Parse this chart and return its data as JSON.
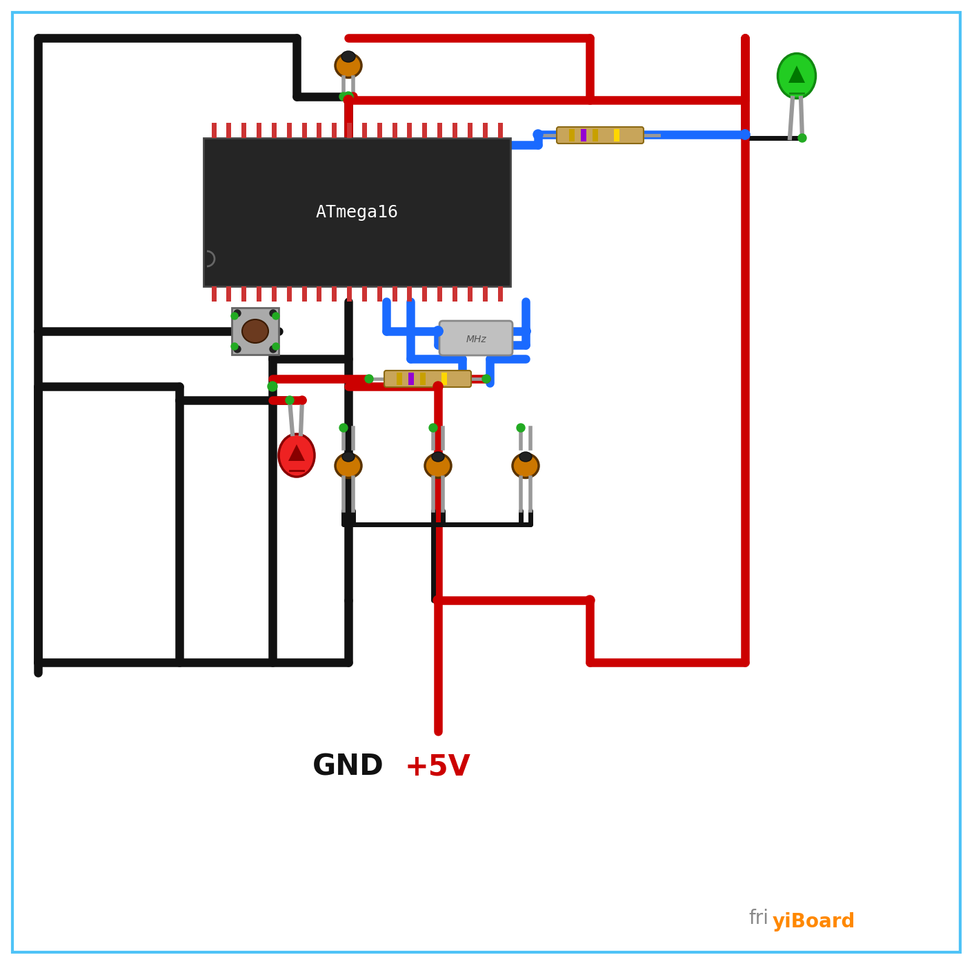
{
  "bg": "#ffffff",
  "border_color": "#4FC3F7",
  "blk": "#111111",
  "red": "#cc0000",
  "blu": "#1a6aff",
  "grn": "#22aa22",
  "ic_bg": "#252525",
  "ic_pin_color": "#cc3333",
  "cap_color": "#cc7700",
  "res_body": "#c8a55a",
  "gray": "#999999",
  "led_green_color": "#22cc22",
  "led_red_color": "#ee2222",
  "xtal_color": "#b8b8b8",
  "gnd_text": "GND",
  "vcc_text": "+5V",
  "ic_text": "ATmega16",
  "mhz_text": "MHz",
  "lw": 9,
  "friy_gray": "#888888",
  "friy_orange": "#ff8800",
  "label_fontsize": 30,
  "ic_fontsize": 18
}
